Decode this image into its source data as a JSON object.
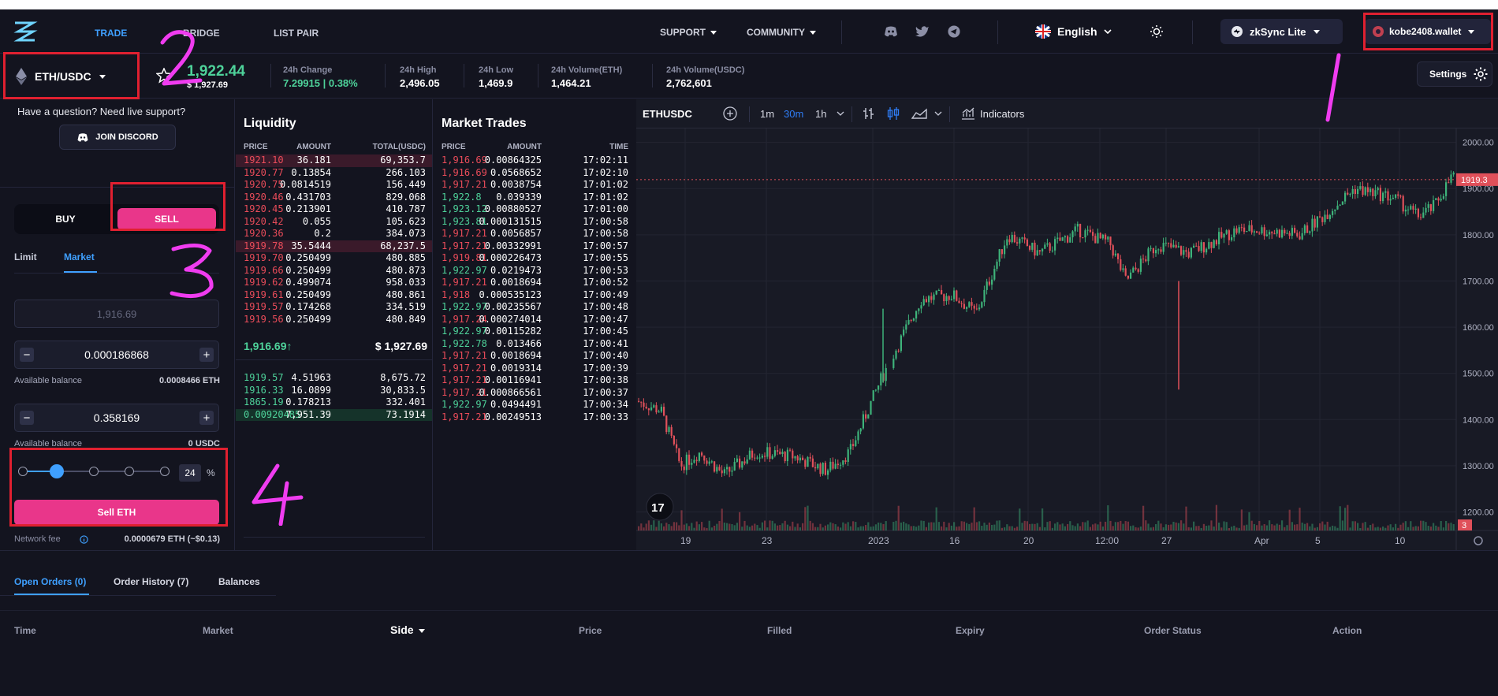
{
  "nav": {
    "links": [
      "TRADE",
      "BRIDGE",
      "LIST PAIR"
    ],
    "support": "SUPPORT",
    "community": "COMMUNITY",
    "language": "English",
    "network": "zkSync Lite",
    "wallet": "kobe2408.wallet"
  },
  "ticker": {
    "pair": "ETH/USDC",
    "price": "1,922.44",
    "price_usd": "$ 1,927.69",
    "stats": [
      {
        "label": "24h Change",
        "value": "7.29915 | 0.38%"
      },
      {
        "label": "24h High",
        "value": "2,496.05"
      },
      {
        "label": "24h Low",
        "value": "1,469.9"
      },
      {
        "label": "24h Volume(ETH)",
        "value": "1,464.21"
      },
      {
        "label": "24h Volume(USDC)",
        "value": "2,762,601"
      }
    ],
    "settings": "Settings"
  },
  "left": {
    "support_q": "Have a question? Need live support?",
    "discord": "JOIN DISCORD",
    "buy": "BUY",
    "sell": "SELL",
    "tab_limit": "Limit",
    "tab_market": "Market",
    "price_placeholder": "1,916.69",
    "amount1": "0.000186868",
    "bal_label1": "Available balance",
    "bal_value1": "0.0008466 ETH",
    "amount2": "0.358169",
    "bal_label2": "Available balance",
    "bal_value2": "0 USDC",
    "slider_percent": 24,
    "percent_sign": "%",
    "sell_btn": "Sell ETH",
    "fee_label": "Network fee",
    "fee_value": "0.0000679 ETH (~$0.13)"
  },
  "liquidity": {
    "title": "Liquidity",
    "headers": [
      "PRICE",
      "AMOUNT",
      "TOTAL(USDC)"
    ],
    "asks": [
      [
        "1921.10",
        "36.181",
        "69,353.7"
      ],
      [
        "1920.77",
        "0.13854",
        "266.103"
      ],
      [
        "1920.75",
        "0.0814519",
        "156.449"
      ],
      [
        "1920.46",
        "0.431703",
        "829.068"
      ],
      [
        "1920.45",
        "0.213901",
        "410.787"
      ],
      [
        "1920.42",
        "0.055",
        "105.623"
      ],
      [
        "1920.36",
        "0.2",
        "384.073"
      ],
      [
        "1919.78",
        "35.5444",
        "68,237.5"
      ],
      [
        "1919.70",
        "0.250499",
        "480.885"
      ],
      [
        "1919.66",
        "0.250499",
        "480.873"
      ],
      [
        "1919.62",
        "0.499074",
        "958.033"
      ],
      [
        "1919.61",
        "0.250499",
        "480.861"
      ],
      [
        "1919.57",
        "0.174268",
        "334.519"
      ],
      [
        "1919.56",
        "0.250499",
        "480.849"
      ]
    ],
    "mid_price": "1,916.69↑",
    "mid_usd": "$ 1,927.69",
    "bids": [
      [
        "1919.57",
        "4.51963",
        "8,675.72"
      ],
      [
        "1916.33",
        "16.0899",
        "30,833.5"
      ],
      [
        "1865.19",
        "0.178213",
        "332.401"
      ],
      [
        "0.00920485",
        "7,951.39",
        "73.1914"
      ]
    ]
  },
  "trades": {
    "title": "Market Trades",
    "headers": [
      "PRICE",
      "AMOUNT",
      "TIME"
    ],
    "rows": [
      [
        "1,916.69",
        "0.00864325",
        "17:02:11",
        "sell"
      ],
      [
        "1,916.69",
        "0.0568652",
        "17:02:10",
        "sell"
      ],
      [
        "1,917.21",
        "0.0038754",
        "17:01:02",
        "sell"
      ],
      [
        "1,922.8",
        "0.039339",
        "17:01:02",
        "buy"
      ],
      [
        "1,923.12",
        "0.00880527",
        "17:01:00",
        "buy"
      ],
      [
        "1,923.81",
        "0.000131515",
        "17:00:58",
        "buy"
      ],
      [
        "1,917.21",
        "0.0056857",
        "17:00:58",
        "sell"
      ],
      [
        "1,917.21",
        "0.00332991",
        "17:00:57",
        "sell"
      ],
      [
        "1,919.81",
        "0.000226473",
        "17:00:55",
        "sell"
      ],
      [
        "1,922.97",
        "0.0219473",
        "17:00:53",
        "buy"
      ],
      [
        "1,917.21",
        "0.0018694",
        "17:00:52",
        "sell"
      ],
      [
        "1,918",
        "0.000535123",
        "17:00:49",
        "sell"
      ],
      [
        "1,922.97",
        "0.00235567",
        "17:00:48",
        "buy"
      ],
      [
        "1,917.24",
        "0.000274014",
        "17:00:47",
        "sell"
      ],
      [
        "1,922.97",
        "0.00115282",
        "17:00:45",
        "buy"
      ],
      [
        "1,922.78",
        "0.013466",
        "17:00:41",
        "buy"
      ],
      [
        "1,917.21",
        "0.0018694",
        "17:00:40",
        "sell"
      ],
      [
        "1,917.21",
        "0.0019314",
        "17:00:39",
        "sell"
      ],
      [
        "1,917.21",
        "0.00116941",
        "17:00:38",
        "sell"
      ],
      [
        "1,917.21",
        "0.000866561",
        "17:00:37",
        "sell"
      ],
      [
        "1,922.97",
        "0.0494491",
        "17:00:34",
        "buy"
      ],
      [
        "1,917.21",
        "0.00249513",
        "17:00:33",
        "sell"
      ]
    ]
  },
  "chart": {
    "symbol": "ETHUSDC",
    "intervals": [
      "1m",
      "30m",
      "1h"
    ],
    "active_interval": "30m",
    "indicators": "Indicators",
    "price_ticks": [
      "2000.00",
      "1900.00",
      "1800.00",
      "1700.00",
      "1600.00",
      "1500.00",
      "1400.00",
      "1300.00",
      "1200.00"
    ],
    "last_price_label": "1919.3",
    "volume_badge": "3",
    "time_ticks": [
      "19",
      "23",
      "2023",
      "16",
      "20",
      "12:00",
      "27",
      "Apr",
      "5",
      "10"
    ],
    "colors": {
      "up": "#3eb37a",
      "down": "#e0505a"
    }
  },
  "bottom": {
    "tabs": [
      "Open Orders (0)",
      "Order History (7)",
      "Balances"
    ],
    "columns": [
      "Time",
      "Market",
      "Side",
      "Price",
      "Filled",
      "Expiry",
      "Order Status",
      "Action"
    ]
  },
  "annotations": [
    "1",
    "2",
    "3",
    "4"
  ]
}
